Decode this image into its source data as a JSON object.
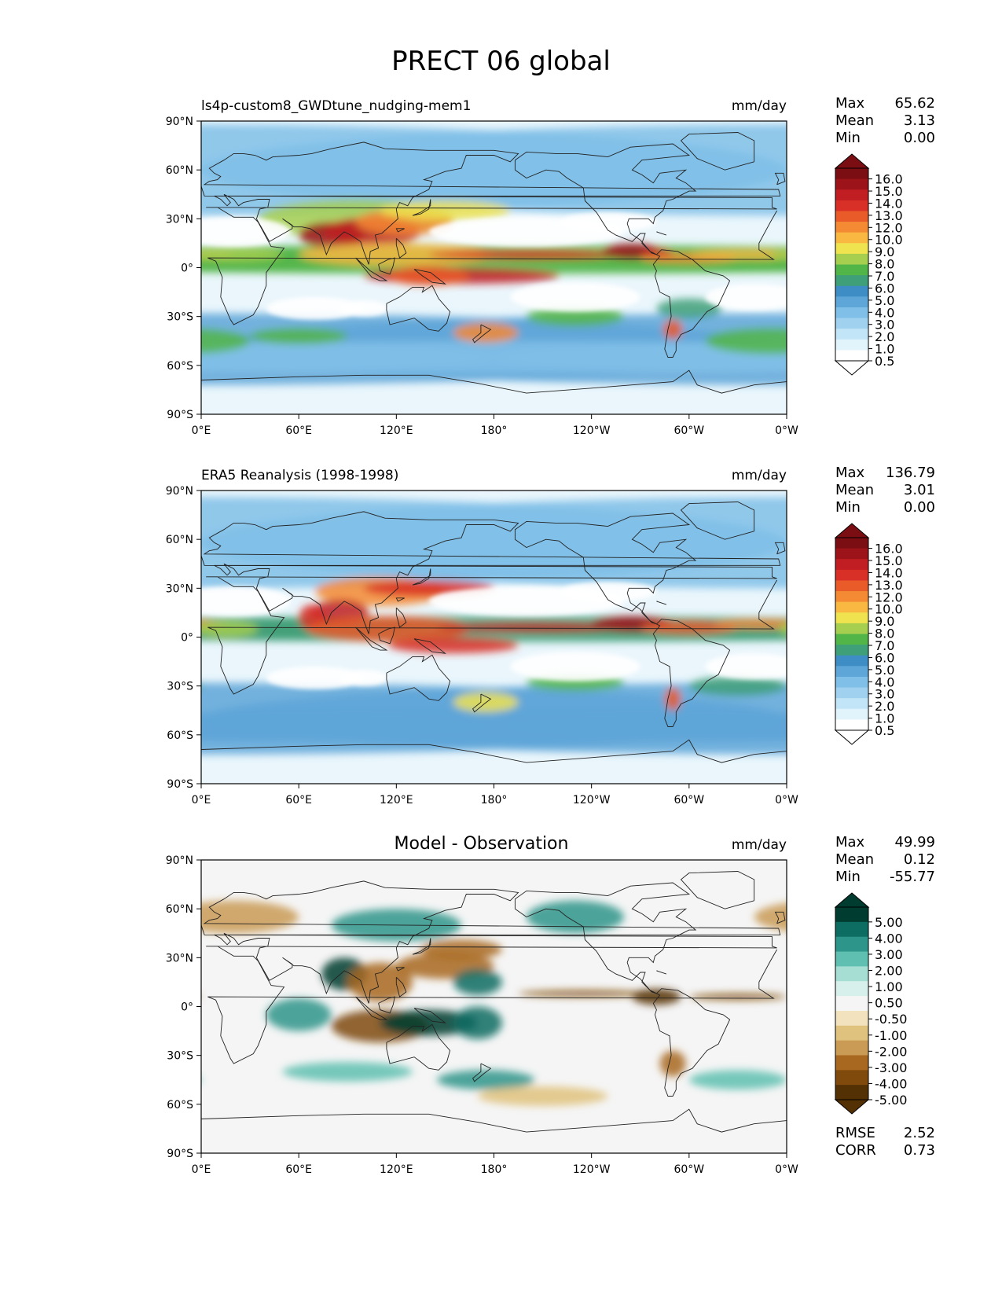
{
  "figure": {
    "title": "PRECT 06 global"
  },
  "axes": {
    "lat_ticks": [
      "90°N",
      "60°N",
      "30°N",
      "0°",
      "30°S",
      "60°S",
      "90°S"
    ],
    "lon_ticks": [
      "0°E",
      "60°E",
      "120°E",
      "180°",
      "120°W",
      "60°W",
      "0°W"
    ]
  },
  "colors": {
    "land_outline": "#222222",
    "precip_levels": [
      "#ffffff",
      "#e1f4fc",
      "#c2e6f8",
      "#a0d2f0",
      "#80bfe7",
      "#5ea6d8",
      "#3f8dc5",
      "#3f9f78",
      "#52b548",
      "#a6cf4f",
      "#efe34f",
      "#f9b842",
      "#f48a34",
      "#ea5b2a",
      "#d82f26",
      "#c01e23",
      "#9c141a",
      "#7a0e12"
    ],
    "diff_levels": [
      "#543005",
      "#7f4a0b",
      "#a86820",
      "#c99b55",
      "#dfc27d",
      "#f2e3be",
      "#f5f5f5",
      "#d8f0eb",
      "#a6ded3",
      "#5fbfb0",
      "#2d958a",
      "#0d6d63",
      "#003c30"
    ]
  },
  "panels": [
    {
      "id": "model",
      "title_left": "ls4p-custom8_GWDtune_nudging-mem1",
      "title_center": "",
      "units": "mm/day",
      "stats": [
        {
          "label": "Max",
          "value": "65.62"
        },
        {
          "label": "Mean",
          "value": "3.13"
        },
        {
          "label": "Min",
          "value": "0.00"
        }
      ],
      "colorbar": {
        "palette": "precip",
        "levels": [
          "16.0",
          "15.0",
          "14.0",
          "13.0",
          "12.0",
          "10.0",
          "9.0",
          "8.0",
          "7.0",
          "6.0",
          "5.0",
          "4.0",
          "3.0",
          "2.0",
          "1.0",
          "0.5"
        ]
      },
      "metrics": []
    },
    {
      "id": "obs",
      "title_left": "ERA5 Reanalysis (1998-1998)",
      "title_center": "",
      "units": "mm/day",
      "stats": [
        {
          "label": "Max",
          "value": "136.79"
        },
        {
          "label": "Mean",
          "value": "3.01"
        },
        {
          "label": "Min",
          "value": "0.00"
        }
      ],
      "colorbar": {
        "palette": "precip",
        "levels": [
          "16.0",
          "15.0",
          "14.0",
          "13.0",
          "12.0",
          "10.0",
          "9.0",
          "8.0",
          "7.0",
          "6.0",
          "5.0",
          "4.0",
          "3.0",
          "2.0",
          "1.0",
          "0.5"
        ]
      },
      "metrics": []
    },
    {
      "id": "diff",
      "title_left": "",
      "title_center": "Model - Observation",
      "units": "mm/day",
      "stats": [
        {
          "label": "Max",
          "value": "49.99"
        },
        {
          "label": "Mean",
          "value": "0.12"
        },
        {
          "label": "Min",
          "value": "-55.77"
        }
      ],
      "colorbar": {
        "palette": "diff",
        "levels": [
          "5.00",
          "4.00",
          "3.00",
          "2.00",
          "1.00",
          "0.50",
          "-0.50",
          "-1.00",
          "-2.00",
          "-3.00",
          "-4.00",
          "-5.00"
        ]
      },
      "metrics": [
        {
          "label": "RMSE",
          "value": "2.52"
        },
        {
          "label": "CORR",
          "value": "0.73"
        }
      ]
    }
  ]
}
